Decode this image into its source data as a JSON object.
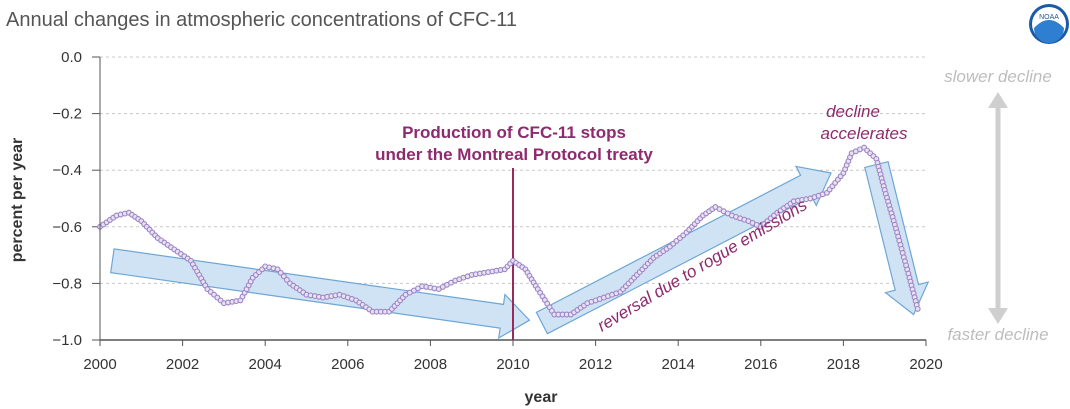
{
  "chart_data": {
    "type": "scatter",
    "title": "Annual changes in atmospheric concentrations of CFC-11",
    "xlabel": "year",
    "ylabel": "percent per year",
    "xlim": [
      2000,
      2020
    ],
    "ylim": [
      -1.0,
      0.0
    ],
    "x_ticks": [
      "2000",
      "2002",
      "2004",
      "2006",
      "2008",
      "2010",
      "2012",
      "2014",
      "2016",
      "2018",
      "2020"
    ],
    "y_ticks": [
      "0.0",
      "−0.2",
      "−0.4",
      "−0.6",
      "−0.8",
      "−1.0"
    ],
    "grid": "horizontal dashed",
    "colors": {
      "points": "#9b84c4",
      "point_fill": "#e8e0f3",
      "arrows": "#cfe3f5",
      "arrow_stroke": "#6ea6d6",
      "annotation": "#8e2a6e",
      "treaty_line": "#9b2a5c",
      "side_arrow": "#cfcfcf"
    },
    "series": [
      {
        "x": [
          2000.0,
          2000.4,
          2000.7,
          2001.0,
          2001.4,
          2001.8,
          2002.2,
          2002.6,
          2003.0,
          2003.4,
          2003.7,
          2004.0,
          2004.3,
          2004.6,
          2005.0,
          2005.4,
          2005.8,
          2006.2,
          2006.6,
          2007.0,
          2007.4,
          2007.8,
          2008.2,
          2008.6,
          2009.0,
          2009.4,
          2009.8,
          2010.0,
          2010.3,
          2010.6,
          2011.0,
          2011.4,
          2011.8,
          2012.2,
          2012.6,
          2013.0,
          2013.4,
          2013.8,
          2014.2,
          2014.6,
          2014.9,
          2015.3,
          2015.7,
          2016.0,
          2016.4,
          2016.8,
          2017.2,
          2017.6,
          2018.0,
          2018.2,
          2018.5,
          2018.8,
          2019.0,
          2019.3,
          2019.6,
          2019.8
        ],
        "y": [
          -0.6,
          -0.56,
          -0.55,
          -0.58,
          -0.64,
          -0.68,
          -0.72,
          -0.82,
          -0.87,
          -0.86,
          -0.78,
          -0.74,
          -0.75,
          -0.8,
          -0.84,
          -0.85,
          -0.84,
          -0.86,
          -0.9,
          -0.9,
          -0.84,
          -0.81,
          -0.82,
          -0.79,
          -0.77,
          -0.76,
          -0.75,
          -0.72,
          -0.75,
          -0.82,
          -0.91,
          -0.91,
          -0.87,
          -0.85,
          -0.83,
          -0.77,
          -0.71,
          -0.67,
          -0.62,
          -0.56,
          -0.53,
          -0.56,
          -0.58,
          -0.6,
          -0.55,
          -0.51,
          -0.5,
          -0.48,
          -0.41,
          -0.34,
          -0.32,
          -0.36,
          -0.47,
          -0.62,
          -0.78,
          -0.89
        ]
      }
    ],
    "treaty_line_x": 2010,
    "annotations": {
      "treaty_line1": "Production of CFC-11 stops",
      "treaty_line2": "under the Montreal Protocol treaty",
      "reversal": "reversal due to rogue emissions",
      "accel_line1": "decline",
      "accel_line2": "accelerates",
      "slower": "slower decline",
      "faster": "faster decline"
    },
    "trend_arrows": [
      {
        "x": [
          2000.3,
          2010.4
        ],
        "y": [
          -0.72,
          -0.93
        ]
      },
      {
        "x": [
          2010.7,
          2017.7
        ],
        "y": [
          -0.94,
          -0.41
        ]
      },
      {
        "x": [
          2018.8,
          2019.7
        ],
        "y": [
          -0.38,
          -0.91
        ]
      }
    ]
  },
  "logo": {
    "name": "noaa-logo-icon",
    "text": "NOAA"
  }
}
